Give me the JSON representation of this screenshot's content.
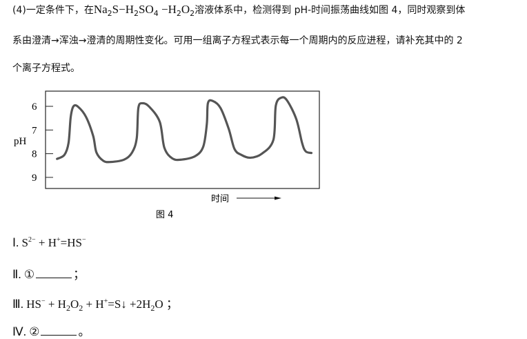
{
  "question": {
    "lines": [
      [
        {
          "t": "(4)一定条件下，在"
        },
        {
          "t": "Na",
          "c": 1
        },
        {
          "t": "2",
          "sub": 1
        },
        {
          "t": "S−H",
          "c": 1
        },
        {
          "t": "2",
          "sub": 1
        },
        {
          "t": "SO",
          "c": 1
        },
        {
          "t": "4",
          "sub": 1
        },
        {
          "t": " −H",
          "c": 1
        },
        {
          "t": "2",
          "sub": 1
        },
        {
          "t": "O",
          "c": 1
        },
        {
          "t": "2",
          "sub": 1
        },
        {
          "t": "溶液体系中，检测得到 pH-时间振荡曲线如图 4，同时观察到体"
        }
      ],
      [
        {
          "t": "系由澄清→浑浊→澄清的周期性变化。可用一组离子方程式表示每一个周期内的反应进程，请补充其中的 2"
        }
      ],
      [
        {
          "t": "个离子方程式。"
        }
      ]
    ]
  },
  "equations": [
    [
      {
        "t": "Ⅰ. S"
      },
      {
        "t": "2−",
        "sup": 1
      },
      {
        "t": " + H"
      },
      {
        "t": "+",
        "sup": 1
      },
      {
        "t": "=HS"
      },
      {
        "t": "−",
        "sup": 1
      }
    ],
    [
      {
        "t": "Ⅱ. ①"
      },
      {
        "blank": 1
      },
      {
        "t": "；"
      }
    ],
    [
      {
        "t": "Ⅲ. HS"
      },
      {
        "t": "−",
        "sup": 1
      },
      {
        "t": " + H"
      },
      {
        "t": "2",
        "sub": 1
      },
      {
        "t": "O"
      },
      {
        "t": "2",
        "sub": 1
      },
      {
        "t": " + H"
      },
      {
        "t": "+",
        "sup": 1
      },
      {
        "t": "=S↓ +2H"
      },
      {
        "t": "2",
        "sub": 1
      },
      {
        "t": "O ；"
      }
    ],
    [
      {
        "t": "Ⅳ. ②"
      },
      {
        "blank": 1
      },
      {
        "t": "。"
      }
    ]
  ],
  "chart_data": {
    "type": "line",
    "title": "",
    "caption": "图 4",
    "xlabel": "时间",
    "ylabel": "pH",
    "yticks": [
      "6",
      "7",
      "8",
      "9"
    ],
    "ylim": [
      9.45,
      5.35
    ],
    "yreversed": true,
    "xlim": [
      0,
      100
    ],
    "grid": false,
    "color": "#555555",
    "x": [
      4.2,
      6.9,
      8.4,
      9.2,
      10.2,
      11.9,
      14.8,
      17.4,
      18.6,
      21.1,
      23.7,
      28.7,
      31.6,
      33.3,
      33.9,
      35.4,
      37.9,
      41.7,
      43.4,
      46.3,
      49.7,
      54.7,
      57.6,
      58.9,
      59.3,
      61.0,
      63.9,
      66.9,
      69.0,
      71.5,
      74.8,
      79.0,
      83.2,
      84.1,
      86.2,
      88.3,
      91.6,
      93.7,
      95.0,
      97.1
    ],
    "values": [
      8.22,
      8.05,
      7.55,
      6.45,
      6.0,
      6.02,
      6.45,
      7.25,
      7.95,
      8.3,
      8.35,
      8.25,
      7.95,
      7.35,
      6.07,
      5.87,
      6.02,
      6.65,
      7.75,
      8.2,
      8.25,
      8.1,
      7.7,
      6.75,
      5.87,
      5.77,
      6.07,
      6.95,
      7.8,
      8.05,
      8.17,
      8.0,
      7.42,
      5.97,
      5.63,
      5.77,
      6.55,
      7.55,
      7.9,
      7.97
    ]
  }
}
